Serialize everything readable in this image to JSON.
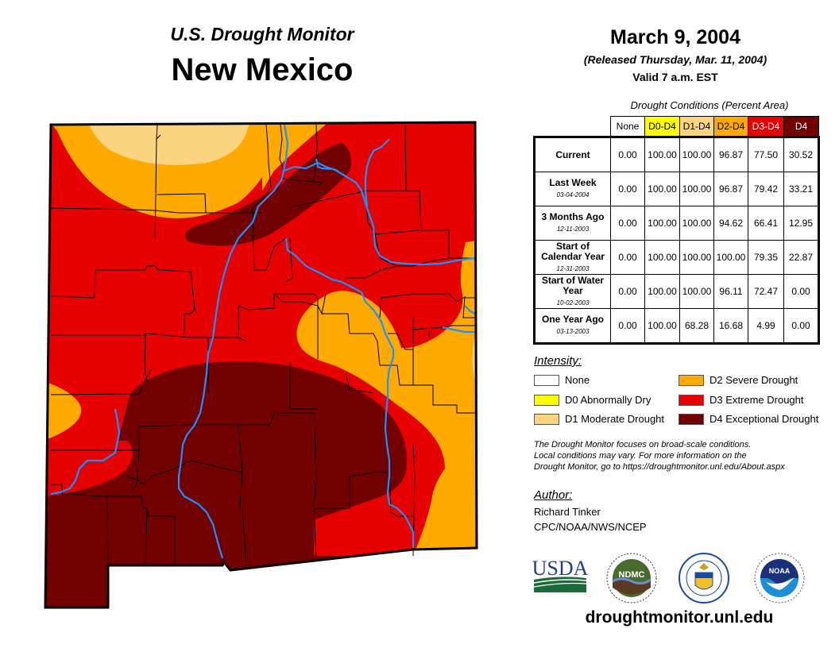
{
  "header": {
    "subtitle": "U.S. Drought Monitor",
    "state": "New Mexico",
    "date": "March 9, 2004",
    "released": "(Released Thursday, Mar. 11, 2004)",
    "valid": "Valid 7 a.m. EST"
  },
  "colors": {
    "none": "#ffffff",
    "d0": "#ffff00",
    "d1": "#fcd37f",
    "d2": "#ffaa00",
    "d3": "#e60000",
    "d4": "#730000",
    "river": "#1e90ff",
    "border": "#000000"
  },
  "table": {
    "caption": "Drought Conditions (Percent Area)",
    "columns": [
      "None",
      "D0-D4",
      "D1-D4",
      "D2-D4",
      "D3-D4",
      "D4"
    ],
    "rows": [
      {
        "label": "Current",
        "date": "",
        "values": [
          "0.00",
          "100.00",
          "100.00",
          "96.87",
          "77.50",
          "30.52"
        ]
      },
      {
        "label": "Last Week",
        "date": "03-04-2004",
        "values": [
          "0.00",
          "100.00",
          "100.00",
          "96.87",
          "79.42",
          "33.21"
        ]
      },
      {
        "label": "3 Months Ago",
        "date": "12-11-2003",
        "values": [
          "0.00",
          "100.00",
          "100.00",
          "94.62",
          "66.41",
          "12.95"
        ]
      },
      {
        "label": "Start of Calendar Year",
        "date": "12-31-2003",
        "values": [
          "0.00",
          "100.00",
          "100.00",
          "100.00",
          "79.35",
          "22.87"
        ]
      },
      {
        "label": "Start of Water Year",
        "date": "10-02-2003",
        "values": [
          "0.00",
          "100.00",
          "100.00",
          "96.11",
          "72.47",
          "0.00"
        ]
      },
      {
        "label": "One Year Ago",
        "date": "03-13-2003",
        "values": [
          "0.00",
          "100.00",
          "68.28",
          "16.68",
          "4.99",
          "0.00"
        ]
      }
    ]
  },
  "legend": {
    "title": "Intensity:",
    "items": [
      {
        "key": "none",
        "label": "None"
      },
      {
        "key": "d0",
        "label": "D0 Abnormally Dry"
      },
      {
        "key": "d1",
        "label": "D1 Moderate Drought"
      },
      {
        "key": "d2",
        "label": "D2 Severe Drought"
      },
      {
        "key": "d3",
        "label": "D3 Extreme Drought"
      },
      {
        "key": "d4",
        "label": "D4 Exceptional Drought"
      }
    ]
  },
  "note": {
    "line1": "The Drought Monitor focuses on broad-scale conditions.",
    "line2": "Local conditions may vary. For more information on the",
    "line3": "Drought Monitor, go to https://droughtmonitor.unl.edu/About.aspx"
  },
  "author": {
    "title": "Author:",
    "name": "Richard Tinker",
    "org": "CPC/NOAA/NWS/NCEP"
  },
  "logos": {
    "usda": "USDA",
    "ndmc": "NDMC",
    "noaa": "NOAA"
  },
  "footer": {
    "url": "droughtmonitor.unl.edu"
  }
}
